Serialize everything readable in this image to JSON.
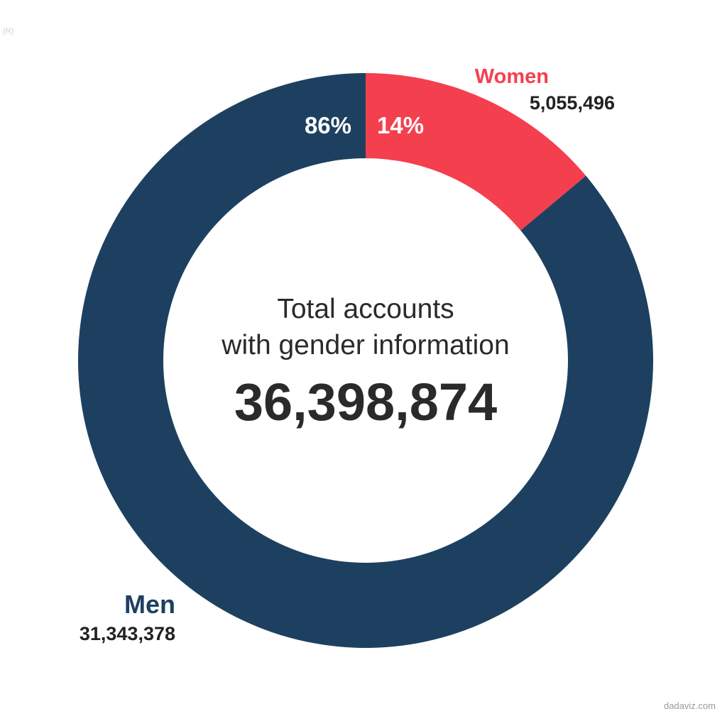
{
  "corner_mark": "(R)",
  "credit": "dadaviz.com",
  "colors": {
    "men": "#1e4060",
    "women": "#f43f4e",
    "center_text": "#2a2a2a",
    "value_text": "#222222"
  },
  "chart_data": {
    "type": "pie",
    "variant": "donut",
    "center_label_line1": "Total accounts",
    "center_label_line2": "with gender information",
    "total": "36,398,874",
    "slices": [
      {
        "name": "Women",
        "value": 5055496,
        "value_label": "5,055,496",
        "percent_label": "14%",
        "color": "#f43f4e"
      },
      {
        "name": "Men",
        "value": 31343378,
        "value_label": "31,343,378",
        "percent_label": "86%",
        "color": "#1e4060"
      }
    ]
  }
}
